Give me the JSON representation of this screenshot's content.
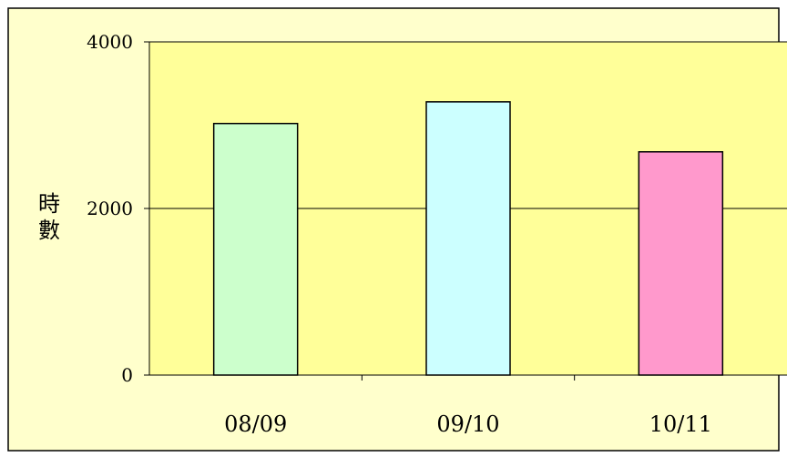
{
  "chart_data": {
    "type": "bar",
    "categories": [
      "08/09",
      "09/10",
      "10/11"
    ],
    "values": [
      3020,
      3280,
      2680
    ],
    "colors": [
      "#ccffcc",
      "#ccffff",
      "#ff99cc"
    ],
    "ylabel": "時數",
    "ylim": [
      0,
      4000
    ],
    "yticks": [
      0,
      2000,
      4000
    ],
    "ytick_labels": [
      "0",
      "2000",
      "4000"
    ],
    "grid": true,
    "legend": "none",
    "background": "#ffff99",
    "plot_background": "#ffff99",
    "chart_background": "#ffffcc"
  }
}
